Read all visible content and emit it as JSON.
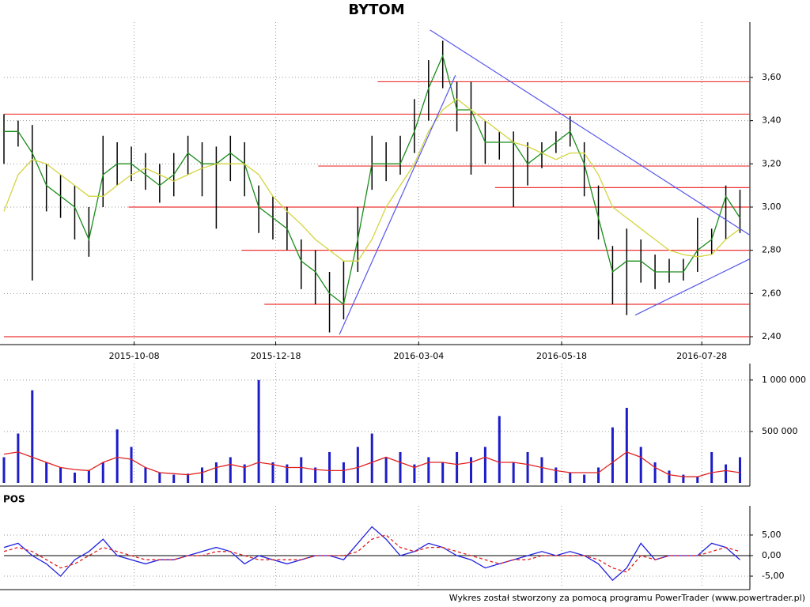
{
  "chart_data": [
    {
      "type": "ohlc",
      "title": "BYTOM",
      "x": [
        0,
        1,
        2,
        3,
        4,
        5,
        6,
        7,
        8,
        9,
        10,
        11,
        12,
        13,
        14,
        15,
        16,
        17,
        18,
        19,
        20,
        21,
        22,
        23,
        24,
        25,
        26,
        27,
        28,
        29,
        30,
        31,
        32,
        33,
        34,
        35,
        36,
        37,
        38,
        39,
        40,
        41,
        42,
        43,
        44,
        45,
        46,
        47,
        48,
        49,
        50,
        51,
        52
      ],
      "high": [
        3.43,
        3.4,
        3.38,
        3.2,
        3.15,
        3.1,
        3.0,
        3.33,
        3.3,
        3.28,
        3.25,
        3.2,
        3.25,
        3.33,
        3.3,
        3.28,
        3.33,
        3.3,
        3.1,
        3.05,
        3.0,
        2.85,
        2.8,
        2.7,
        2.75,
        3.0,
        3.33,
        3.3,
        3.33,
        3.5,
        3.68,
        3.77,
        3.58,
        3.58,
        3.4,
        3.35,
        3.35,
        3.3,
        3.3,
        3.35,
        3.42,
        3.3,
        3.1,
        2.82,
        2.9,
        2.85,
        2.78,
        2.76,
        2.76,
        2.95,
        2.9,
        3.1,
        3.08
      ],
      "low": [
        3.2,
        3.28,
        2.66,
        2.98,
        2.95,
        2.85,
        2.77,
        3.0,
        3.1,
        3.12,
        3.08,
        3.02,
        3.05,
        3.15,
        3.05,
        2.9,
        3.12,
        3.05,
        2.88,
        2.85,
        2.8,
        2.62,
        2.55,
        2.42,
        2.48,
        2.7,
        3.08,
        3.12,
        3.15,
        3.25,
        3.4,
        3.55,
        3.35,
        3.15,
        3.2,
        3.22,
        3.0,
        3.1,
        3.18,
        3.25,
        3.28,
        3.05,
        2.85,
        2.55,
        2.5,
        2.65,
        2.62,
        2.65,
        2.66,
        2.7,
        2.78,
        2.85,
        2.88
      ],
      "bar_color": "#000000",
      "series": [
        {
          "color": "#1a8c1a",
          "values": [
            3.35,
            3.35,
            3.25,
            3.1,
            3.05,
            3.0,
            2.85,
            3.15,
            3.2,
            3.2,
            3.15,
            3.1,
            3.15,
            3.25,
            3.2,
            3.2,
            3.25,
            3.2,
            3.0,
            2.95,
            2.9,
            2.75,
            2.7,
            2.6,
            2.55,
            2.85,
            3.2,
            3.2,
            3.2,
            3.35,
            3.55,
            3.7,
            3.45,
            3.45,
            3.3,
            3.3,
            3.3,
            3.2,
            3.25,
            3.3,
            3.35,
            3.2,
            2.95,
            2.7,
            2.75,
            2.75,
            2.7,
            2.7,
            2.7,
            2.8,
            2.85,
            3.05,
            2.95
          ]
        },
        {
          "color": "#d4d440",
          "values": [
            2.98,
            3.15,
            3.22,
            3.2,
            3.15,
            3.1,
            3.05,
            3.05,
            3.1,
            3.15,
            3.18,
            3.15,
            3.12,
            3.15,
            3.18,
            3.2,
            3.2,
            3.2,
            3.15,
            3.05,
            2.98,
            2.92,
            2.85,
            2.8,
            2.75,
            2.75,
            2.85,
            3.0,
            3.1,
            3.2,
            3.35,
            3.45,
            3.5,
            3.45,
            3.4,
            3.35,
            3.3,
            3.28,
            3.25,
            3.22,
            3.25,
            3.25,
            3.15,
            3.0,
            2.95,
            2.9,
            2.85,
            2.8,
            2.78,
            2.77,
            2.78,
            2.85,
            2.9
          ]
        }
      ],
      "levels": [
        {
          "y": 3.58,
          "x0": 26.4
        },
        {
          "y": 3.43,
          "x0": 0
        },
        {
          "y": 3.19,
          "x0": 22.2
        },
        {
          "y": 3.09,
          "x0": 34.7
        },
        {
          "y": 3.0,
          "x0": 8.8
        },
        {
          "y": 2.8,
          "x0": 16.8
        },
        {
          "y": 2.55,
          "x0": 18.4
        },
        {
          "y": 2.4,
          "x0": 0
        }
      ],
      "level_color": "#ee3333",
      "trendlines": [
        {
          "x": [
            30.1,
            52.7
          ],
          "y": [
            3.82,
            2.87
          ]
        },
        {
          "x": [
            23.7,
            31.9
          ],
          "y": [
            2.41,
            3.61
          ]
        },
        {
          "x": [
            44.6,
            52.7
          ],
          "y": [
            2.5,
            2.76
          ]
        }
      ],
      "trendline_color": "#5555ee",
      "xlim": [
        0,
        52.7
      ],
      "ylim": [
        2.378,
        3.856
      ],
      "xticks": [
        {
          "value": 9.2,
          "label": "2015-10-08"
        },
        {
          "value": 19.2,
          "label": "2015-12-18"
        },
        {
          "value": 29.3,
          "label": "2016-03-04"
        },
        {
          "value": 39.4,
          "label": "2016-05-18"
        },
        {
          "value": 49.3,
          "label": "2016-07-28"
        }
      ],
      "yticks": [
        {
          "value": 2.4,
          "label": "2,40"
        },
        {
          "value": 2.6,
          "label": "2,60"
        },
        {
          "value": 2.8,
          "label": "2,80"
        },
        {
          "value": 3.0,
          "label": "3,00"
        },
        {
          "value": 3.2,
          "label": "3,20"
        },
        {
          "value": 3.4,
          "label": "3,40"
        },
        {
          "value": 3.6,
          "label": "3,60"
        }
      ],
      "grid": true
    },
    {
      "type": "bar",
      "x": [
        0,
        1,
        2,
        3,
        4,
        5,
        6,
        7,
        8,
        9,
        10,
        11,
        12,
        13,
        14,
        15,
        16,
        17,
        18,
        19,
        20,
        21,
        22,
        23,
        24,
        25,
        26,
        27,
        28,
        29,
        30,
        31,
        32,
        33,
        34,
        35,
        36,
        37,
        38,
        39,
        40,
        41,
        42,
        43,
        44,
        45,
        46,
        47,
        48,
        49,
        50,
        51,
        52
      ],
      "values": [
        250000,
        480000,
        900000,
        200000,
        150000,
        100000,
        120000,
        200000,
        520000,
        350000,
        150000,
        100000,
        80000,
        90000,
        150000,
        200000,
        250000,
        180000,
        1000000,
        200000,
        180000,
        250000,
        150000,
        300000,
        200000,
        350000,
        480000,
        250000,
        300000,
        180000,
        250000,
        200000,
        300000,
        250000,
        350000,
        650000,
        200000,
        300000,
        250000,
        150000,
        100000,
        80000,
        150000,
        540000,
        730000,
        350000,
        200000,
        120000,
        80000,
        60000,
        300000,
        180000,
        250000
      ],
      "color": "#1c1cc8",
      "series": [
        {
          "color": "#e02020",
          "values": [
            280000,
            300000,
            250000,
            200000,
            150000,
            130000,
            120000,
            200000,
            250000,
            230000,
            150000,
            100000,
            90000,
            80000,
            100000,
            150000,
            180000,
            150000,
            200000,
            180000,
            150000,
            150000,
            130000,
            120000,
            120000,
            150000,
            200000,
            250000,
            200000,
            150000,
            200000,
            200000,
            180000,
            200000,
            250000,
            200000,
            200000,
            180000,
            150000,
            120000,
            100000,
            100000,
            100000,
            200000,
            300000,
            250000,
            150000,
            80000,
            60000,
            60000,
            100000,
            120000,
            100000
          ]
        }
      ],
      "xlim": [
        0,
        52.7
      ],
      "ylim": [
        0,
        1160000
      ],
      "yticks": [
        {
          "value": 500000,
          "label": "500 000"
        },
        {
          "value": 1000000,
          "label": "1 000 000"
        }
      ],
      "grid": true
    },
    {
      "type": "line",
      "title": "POS",
      "x": [
        0,
        1,
        2,
        3,
        4,
        5,
        6,
        7,
        8,
        9,
        10,
        11,
        12,
        13,
        14,
        15,
        16,
        17,
        18,
        19,
        20,
        21,
        22,
        23,
        24,
        25,
        26,
        27,
        28,
        29,
        30,
        31,
        32,
        33,
        34,
        35,
        36,
        37,
        38,
        39,
        40,
        41,
        42,
        43,
        44,
        45,
        46,
        47,
        48,
        49,
        50,
        51,
        52
      ],
      "series": [
        {
          "color": "#2020e0",
          "style": "solid",
          "values": [
            2,
            3,
            0,
            -2,
            -5,
            -1,
            1,
            4,
            0,
            -1,
            -2,
            -1,
            -1,
            0,
            1,
            2,
            1,
            -2,
            0,
            -1,
            -2,
            -1,
            0,
            0,
            -1,
            3,
            7,
            4,
            0,
            1,
            3,
            2,
            0,
            -1,
            -3,
            -2,
            -1,
            0,
            1,
            0,
            1,
            0,
            -2,
            -6,
            -3,
            3,
            -1,
            0,
            0,
            0,
            3,
            2,
            -1
          ]
        },
        {
          "color": "#e02020",
          "style": "dashed",
          "values": [
            1,
            2,
            1,
            -1,
            -3,
            -2,
            0,
            2,
            1,
            0,
            -1,
            -1,
            -1,
            0,
            0,
            1,
            1,
            0,
            -1,
            -1,
            -1,
            -1,
            0,
            0,
            0,
            1,
            4,
            5,
            2,
            1,
            2,
            2,
            1,
            0,
            -1,
            -2,
            -1,
            -1,
            0,
            0,
            0,
            0,
            -1,
            -3,
            -4,
            0,
            -1,
            0,
            0,
            0,
            1,
            2,
            1
          ]
        }
      ],
      "xlim": [
        0,
        52.7
      ],
      "ylim": [
        -7.5,
        12.1
      ],
      "yticks": [
        {
          "value": -5,
          "label": "-5,00"
        },
        {
          "value": 0,
          "label": "0,00"
        },
        {
          "value": 5,
          "label": "5,00"
        }
      ],
      "grid": true
    }
  ],
  "footer": "Wykres został stworzony za pomocą programu PowerTrader (www.powertrader.pl)"
}
